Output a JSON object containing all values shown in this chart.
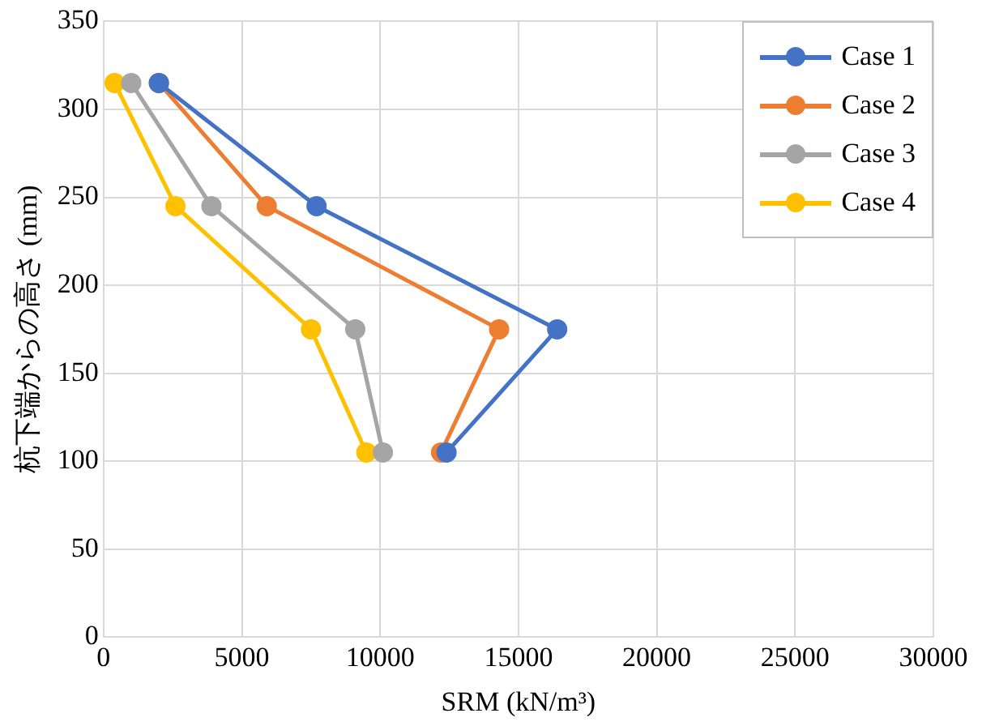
{
  "chart_data": {
    "type": "line",
    "xlabel": "SRM (kN/m³)",
    "ylabel": "杭下端からの高さ (mm)",
    "xlim": [
      0,
      30000
    ],
    "xticks": [
      0,
      5000,
      10000,
      15000,
      20000,
      25000,
      30000
    ],
    "ylim": [
      0,
      350
    ],
    "yticks": [
      0,
      50,
      100,
      150,
      200,
      250,
      300,
      350
    ],
    "grid": true,
    "legend": "top right",
    "marker": "circle",
    "line_style": "solid",
    "series": [
      {
        "name": "Case 1",
        "color": "#4472c4",
        "x": [
          2000,
          7700,
          16400,
          12400
        ],
        "values": [
          315,
          245,
          175,
          105
        ]
      },
      {
        "name": "Case 2",
        "color": "#ed7d31",
        "x": [
          2000,
          5900,
          14300,
          12200
        ],
        "values": [
          315,
          245,
          175,
          105
        ]
      },
      {
        "name": "Case 3",
        "color": "#a5a5a5",
        "x": [
          1000,
          3900,
          9100,
          10100
        ],
        "values": [
          315,
          245,
          175,
          105
        ]
      },
      {
        "name": "Case 4",
        "color": "#ffc000",
        "x": [
          400,
          2600,
          7500,
          9500
        ],
        "values": [
          315,
          245,
          175,
          105
        ]
      }
    ]
  }
}
